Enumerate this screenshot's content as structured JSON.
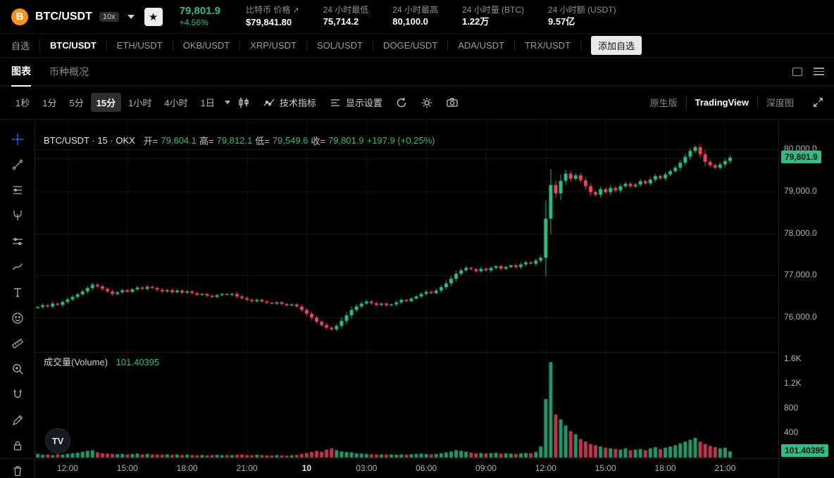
{
  "colors": {
    "up": "#2ebd85",
    "down": "#f0445f",
    "accent_blue": "#2962ff",
    "grid": "#1a1a1a"
  },
  "header": {
    "symbol": "BTC/USDT",
    "leverage_badge": "10x",
    "price": "79,801.9",
    "change_pct": "+4.56%",
    "stats": [
      {
        "label": "比特币 价格",
        "value": "$79,841.80",
        "link": true
      },
      {
        "label": "24 小时最低",
        "value": "75,714.2",
        "link": false
      },
      {
        "label": "24 小时最高",
        "value": "80,100.0",
        "link": false
      },
      {
        "label": "24 小时量 (BTC)",
        "value": "1.22万",
        "link": false
      },
      {
        "label": "24 小时额 (USDT)",
        "value": "9.57亿",
        "link": false
      }
    ]
  },
  "pairs_bar": {
    "items": [
      "自选",
      "BTC/USDT",
      "ETH/USDT",
      "OKB/USDT",
      "XRP/USDT",
      "SOL/USDT",
      "DOGE/USDT",
      "ADA/USDT",
      "TRX/USDT"
    ],
    "active": "BTC/USDT",
    "add_button": "添加自选"
  },
  "view_tabs": {
    "items": [
      "图表",
      "币种概况"
    ],
    "active": "图表"
  },
  "toolbar": {
    "intervals": [
      "1秒",
      "1分",
      "5分",
      "15分",
      "1小时",
      "4小时",
      "1日"
    ],
    "active_interval": "15分",
    "indicators_label": "技术指标",
    "display_settings_label": "显示设置",
    "chart_modes": [
      "原生版",
      "TradingView",
      "深度图"
    ],
    "active_mode": "TradingView"
  },
  "legend": {
    "title": "BTC/USDT · 15 · OKX",
    "open_label": "开=",
    "open": "79,604.1",
    "high_label": "高=",
    "high": "79,812.1",
    "low_label": "低=",
    "low": "79,549.6",
    "close_label": "收=",
    "close": "79,801.9",
    "change": "+197.9 (+0.25%)"
  },
  "volume_pane": {
    "label": "成交量(Volume)",
    "value": "101.40395"
  },
  "price_tag": "79,801.9",
  "volume_tag": "101.40395",
  "tool_rail": [
    "crosshair",
    "trend-line",
    "fib-retracement",
    "pitchfork",
    "long-position",
    "brush",
    "text",
    "emoji",
    "measure-ruler",
    "zoom-in",
    "magnet",
    "edit-drawing",
    "lock-drawings",
    "remove-drawings"
  ],
  "tv_watermark": "TV",
  "chart_data": {
    "type": "candlestick+volume",
    "symbol": "BTC/USDT",
    "interval": "15m",
    "last_price": 79801.9,
    "last_volume": 101.40395,
    "price_axis": {
      "ticks": [
        80000,
        79000,
        78000,
        77000,
        76000
      ],
      "tick_labels": [
        "80,000.0",
        "79,000.0",
        "78,000.0",
        "77,000.0",
        "76,000.0"
      ]
    },
    "volume_axis": {
      "ticks": [
        1600,
        1200,
        800,
        400
      ],
      "tick_labels": [
        "1.6K",
        "1.2K",
        "800",
        "400"
      ]
    },
    "time_labels": [
      {
        "idx": 6,
        "text": "12:00",
        "emph": false
      },
      {
        "idx": 18,
        "text": "15:00",
        "emph": false
      },
      {
        "idx": 30,
        "text": "18:00",
        "emph": false
      },
      {
        "idx": 42,
        "text": "21:00",
        "emph": false
      },
      {
        "idx": 54,
        "text": "10",
        "emph": true
      },
      {
        "idx": 66,
        "text": "03:00",
        "emph": false
      },
      {
        "idx": 78,
        "text": "06:00",
        "emph": false
      },
      {
        "idx": 90,
        "text": "09:00",
        "emph": false
      },
      {
        "idx": 102,
        "text": "12:00",
        "emph": false
      },
      {
        "idx": 114,
        "text": "15:00",
        "emph": false
      },
      {
        "idx": 126,
        "text": "18:00",
        "emph": false
      },
      {
        "idx": 138,
        "text": "21:00",
        "emph": false
      }
    ],
    "first_open": 76230,
    "closes": [
      76250,
      76290,
      76260,
      76330,
      76300,
      76370,
      76430,
      76490,
      76550,
      76620,
      76700,
      76780,
      76740,
      76680,
      76620,
      76560,
      76600,
      76650,
      76610,
      76670,
      76710,
      76680,
      76730,
      76700,
      76660,
      76620,
      76650,
      76600,
      76640,
      76590,
      76620,
      76580,
      76540,
      76560,
      76520,
      76490,
      76530,
      76560,
      76540,
      76560,
      76500,
      76460,
      76420,
      76390,
      76420,
      76380,
      76350,
      76330,
      76360,
      76320,
      76290,
      76310,
      76260,
      76180,
      76090,
      76000,
      75900,
      75820,
      75760,
      75720,
      75800,
      75920,
      76050,
      76180,
      76260,
      76330,
      76380,
      76340,
      76300,
      76330,
      76290,
      76310,
      76360,
      76420,
      76390,
      76450,
      76500,
      76560,
      76610,
      76580,
      76640,
      76720,
      76810,
      76920,
      77040,
      77120,
      77180,
      77150,
      77100,
      77160,
      77120,
      77180,
      77220,
      77160,
      77200,
      77240,
      77200,
      77260,
      77310,
      77280,
      77350,
      77420,
      78350,
      79150,
      78950,
      79250,
      79420,
      79300,
      79380,
      79260,
      79120,
      78980,
      78920,
      79050,
      78980,
      79080,
      79020,
      79120,
      79180,
      79120,
      79160,
      79240,
      79190,
      79280,
      79360,
      79310,
      79400,
      79480,
      79560,
      79680,
      79820,
      79960,
      80050,
      79880,
      79700,
      79620,
      79560,
      79640,
      79720,
      79801.9
    ],
    "volumes": [
      60,
      45,
      50,
      40,
      55,
      48,
      62,
      70,
      80,
      95,
      110,
      120,
      85,
      70,
      65,
      60,
      55,
      60,
      50,
      58,
      66,
      52,
      60,
      48,
      50,
      45,
      52,
      44,
      50,
      42,
      48,
      40,
      38,
      42,
      36,
      40,
      44,
      38,
      42,
      40,
      45,
      50,
      42,
      38,
      46,
      40,
      36,
      34,
      40,
      36,
      32,
      38,
      44,
      60,
      75,
      90,
      110,
      95,
      130,
      150,
      120,
      100,
      90,
      85,
      70,
      65,
      60,
      55,
      50,
      52,
      48,
      50,
      46,
      52,
      48,
      55,
      60,
      64,
      58,
      52,
      60,
      72,
      85,
      100,
      120,
      110,
      95,
      80,
      70,
      75,
      68,
      72,
      78,
      64,
      70,
      66,
      60,
      70,
      75,
      68,
      90,
      180,
      950,
      1550,
      700,
      620,
      520,
      430,
      380,
      300,
      260,
      220,
      200,
      180,
      160,
      150,
      140,
      130,
      150,
      120,
      130,
      140,
      120,
      150,
      170,
      140,
      160,
      180,
      200,
      230,
      260,
      290,
      320,
      260,
      220,
      190,
      170,
      150,
      160,
      101.40395
    ]
  }
}
